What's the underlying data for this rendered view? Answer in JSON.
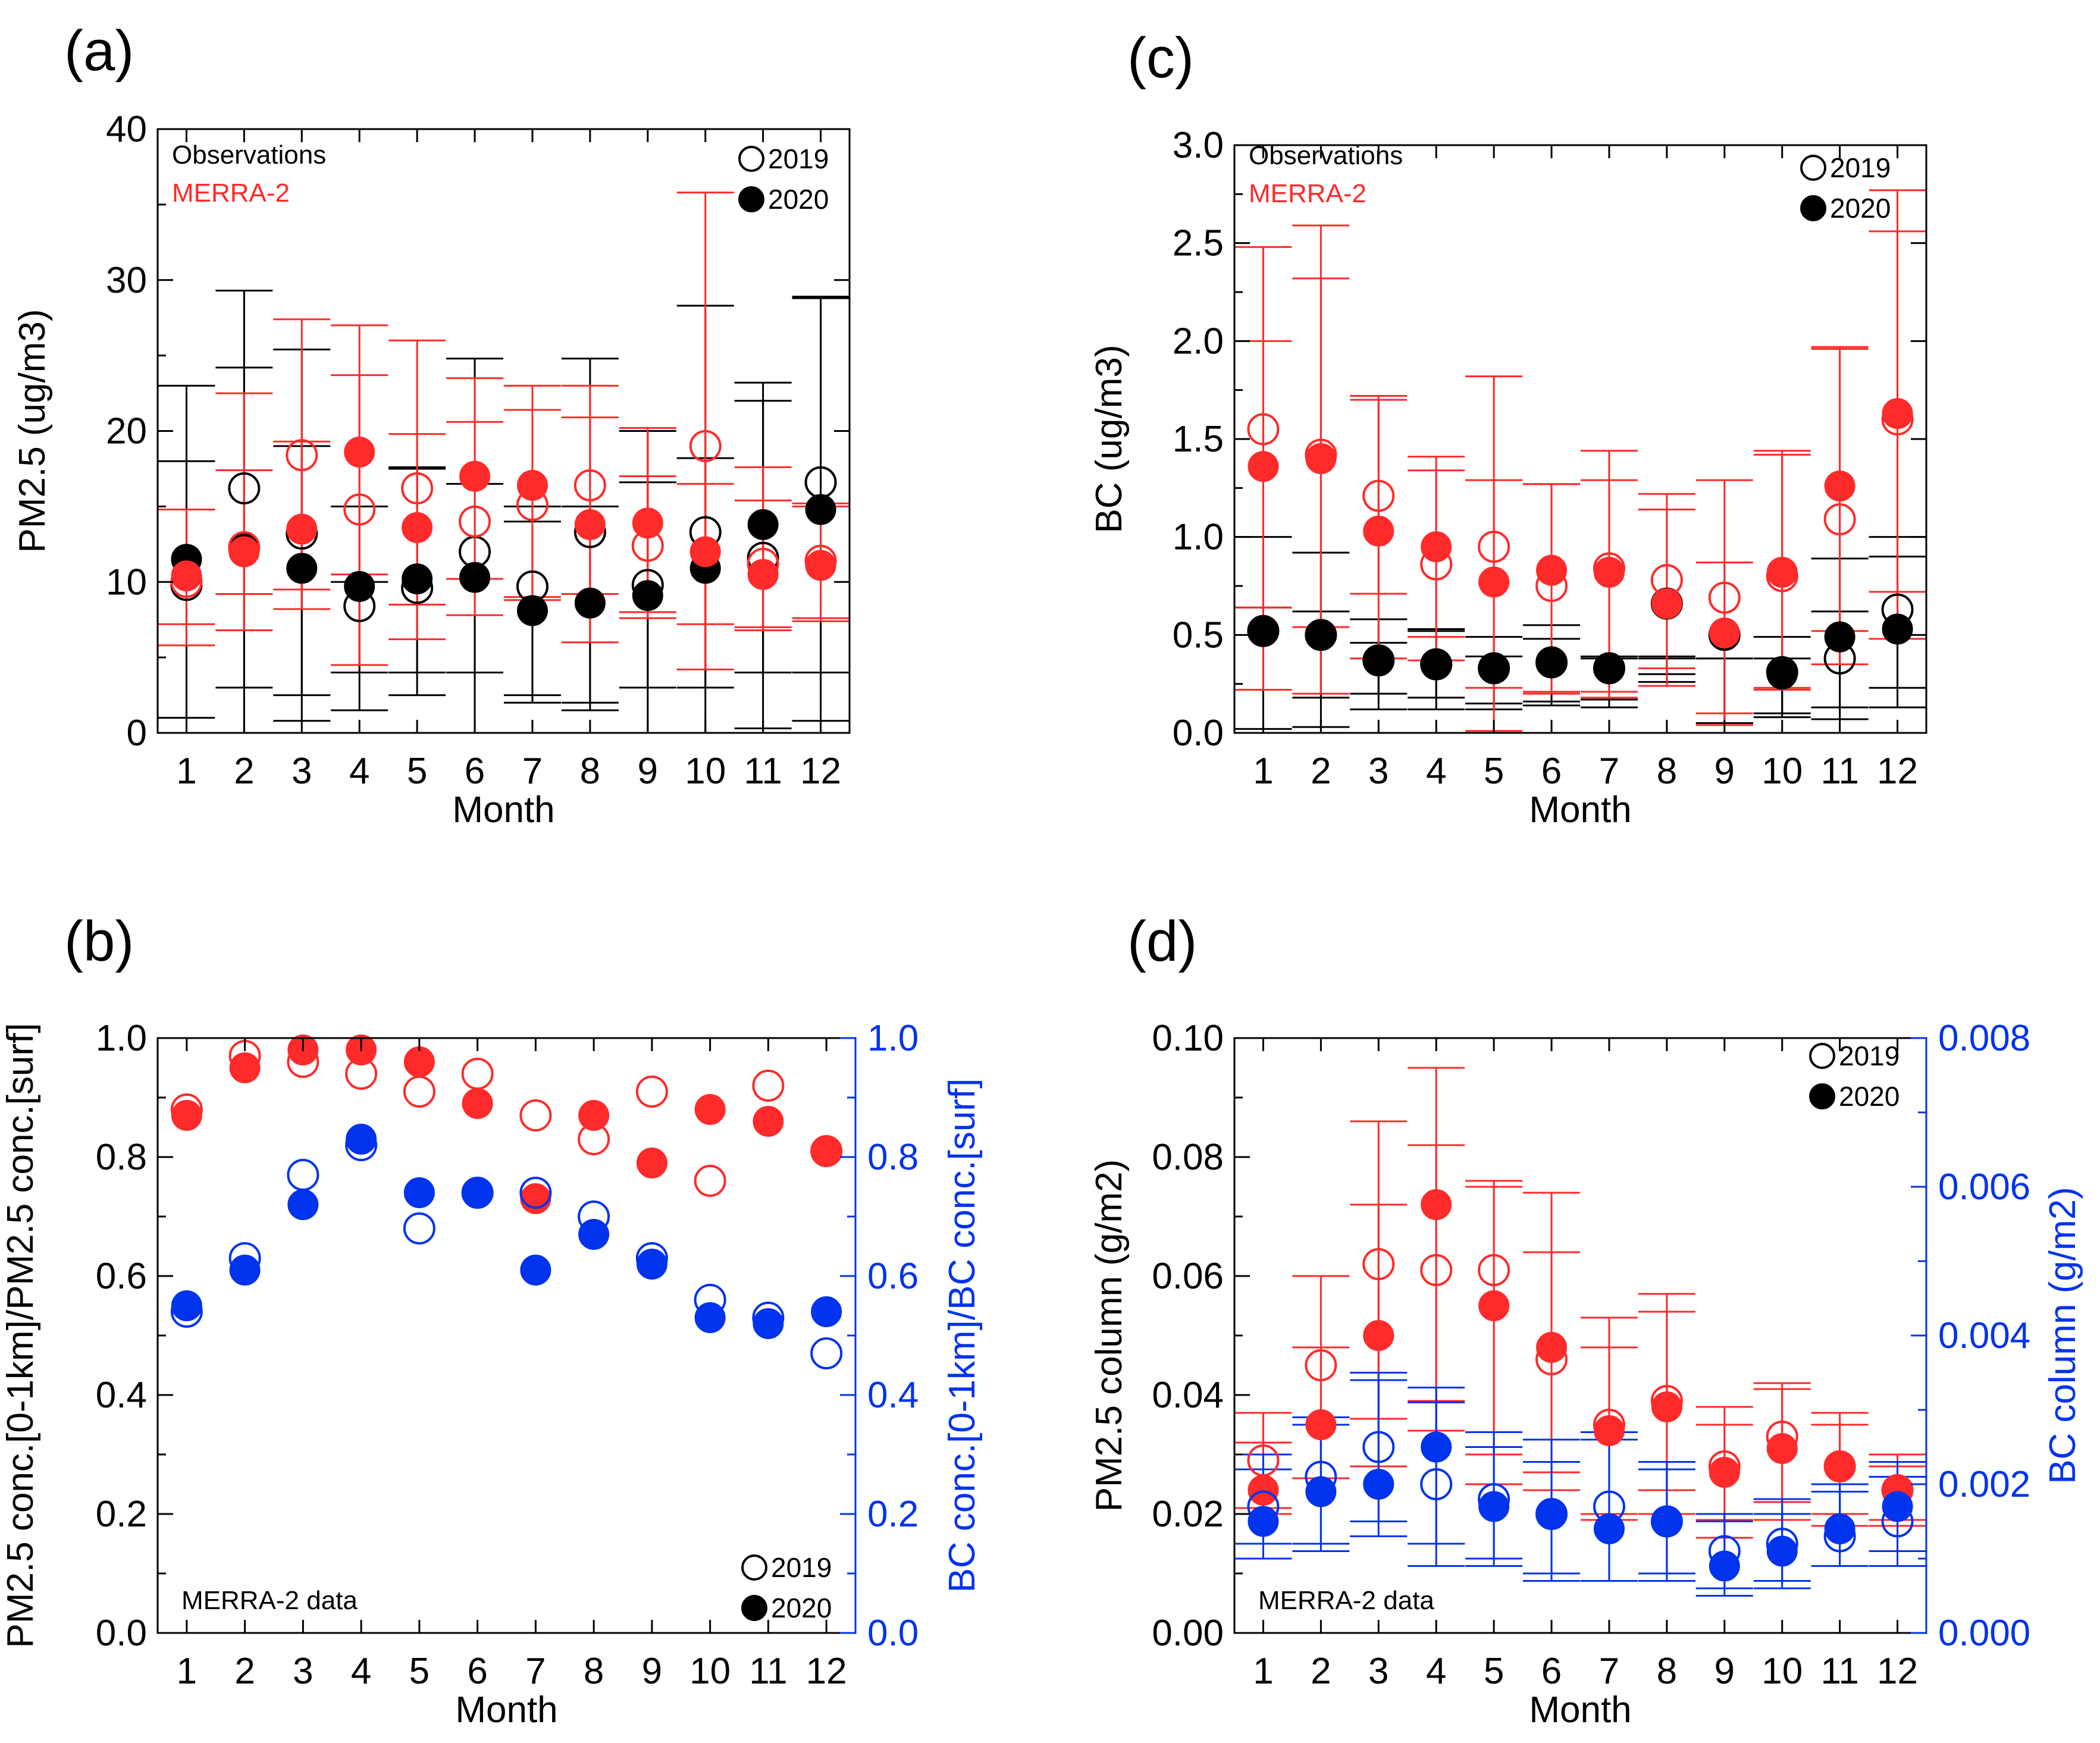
{
  "chart_data": [
    {
      "id": "a",
      "panel_label": "(a)",
      "type": "scatter",
      "xlabel": "Month",
      "ylabel": "PM2.5 (ug/m3)",
      "x": [
        1,
        2,
        3,
        4,
        5,
        6,
        7,
        8,
        9,
        10,
        11,
        12
      ],
      "x_ticks": [
        "1",
        "2",
        "3",
        "4",
        "5",
        "6",
        "7",
        "8",
        "9",
        "10",
        "11",
        "12"
      ],
      "xlim": [
        0.5,
        12.5
      ],
      "ylim": [
        0,
        40
      ],
      "y_ticks": [
        "0",
        "10",
        "20",
        "30",
        "40"
      ],
      "y_tick_values": [
        0,
        10,
        20,
        30,
        40
      ],
      "text_labels": [
        "Observations",
        "MERRA-2"
      ],
      "text_label_colors": [
        "#000000",
        "#ff2a2a"
      ],
      "legend": [
        "2019",
        "2020"
      ],
      "series": [
        {
          "name": "Observations 2019",
          "color": "#000000",
          "filled": false,
          "values": [
            9.8,
            16.2,
            13.2,
            8.4,
            9.6,
            12.0,
            9.7,
            13.3,
            9.8,
            13.3,
            11.6,
            16.6
          ],
          "upper": [
            18.0,
            24.2,
            25.4,
            15.0,
            17.5,
            24.8,
            15.0,
            15.0,
            16.6,
            28.3,
            22.0,
            28.8
          ],
          "lower": [
            1.0,
            3.0,
            2.5,
            4.0,
            4.0,
            4.0,
            2.0,
            2.0,
            3.0,
            3.0,
            4.0,
            4.0
          ]
        },
        {
          "name": "Observations 2020",
          "color": "#000000",
          "filled": true,
          "values": [
            11.5,
            12.3,
            10.9,
            9.7,
            10.2,
            10.3,
            8.1,
            8.6,
            9.1,
            10.9,
            13.8,
            14.8
          ],
          "upper": [
            23.0,
            29.3,
            19.0,
            10.0,
            17.6,
            16.5,
            14.0,
            24.8,
            20.0,
            18.2,
            23.2,
            28.9
          ],
          "lower": [
            0.0,
            0.0,
            0.8,
            1.5,
            2.5,
            0.0,
            2.5,
            1.5,
            0.0,
            0.0,
            0.3,
            0.8
          ]
        },
        {
          "name": "MERRA-2 2019",
          "color": "#ff2a2a",
          "filled": false,
          "values": [
            10.0,
            12.3,
            18.4,
            14.8,
            16.2,
            14.0,
            15.1,
            16.4,
            12.4,
            19.0,
            11.2,
            11.4
          ],
          "upper": [
            14.8,
            22.5,
            27.4,
            27.0,
            26.0,
            23.5,
            23.0,
            23.0,
            17.0,
            35.8,
            17.6,
            15.2
          ],
          "lower": [
            5.8,
            9.2,
            9.5,
            4.5,
            6.2,
            7.8,
            8.8,
            6.0,
            7.6,
            7.2,
            7.0,
            7.6
          ]
        },
        {
          "name": "MERRA-2 2020",
          "color": "#ff2a2a",
          "filled": true,
          "values": [
            10.4,
            12.0,
            13.5,
            18.6,
            13.6,
            17.0,
            16.4,
            13.8,
            13.9,
            12.0,
            10.5,
            11.1
          ],
          "upper": [
            14.8,
            17.4,
            19.3,
            23.7,
            19.8,
            20.6,
            21.4,
            20.9,
            20.2,
            16.5,
            15.4,
            15.0
          ],
          "lower": [
            7.2,
            6.8,
            8.2,
            10.5,
            8.5,
            10.2,
            9.0,
            9.2,
            8.0,
            4.2,
            6.8,
            7.4
          ]
        }
      ]
    },
    {
      "id": "c",
      "panel_label": "(c)",
      "type": "scatter",
      "xlabel": "Month",
      "ylabel": "BC (ug/m3)",
      "x": [
        1,
        2,
        3,
        4,
        5,
        6,
        7,
        8,
        9,
        10,
        11,
        12
      ],
      "x_ticks": [
        "1",
        "2",
        "3",
        "4",
        "5",
        "6",
        "7",
        "8",
        "9",
        "10",
        "11",
        "12"
      ],
      "xlim": [
        0.5,
        12.5
      ],
      "ylim": [
        0,
        3.0
      ],
      "y_ticks": [
        "0.0",
        "0.5",
        "1.0",
        "1.5",
        "2.0",
        "2.5",
        "3.0"
      ],
      "y_tick_values": [
        0,
        0.5,
        1.0,
        1.5,
        2.0,
        2.5,
        3.0
      ],
      "text_labels": [
        "Observations",
        "MERRA-2"
      ],
      "text_label_colors": [
        "#000000",
        "#ff2a2a"
      ],
      "legend": [
        "2019",
        "2020"
      ],
      "series": [
        {
          "name": "Observations 2019",
          "color": "#000000",
          "filled": false,
          "values": [
            0.52,
            0.5,
            0.37,
            0.35,
            0.33,
            0.36,
            0.33,
            0.66,
            0.5,
            0.31,
            0.38,
            0.63
          ],
          "upper": [
            1.0,
            0.92,
            0.58,
            0.52,
            0.49,
            0.55,
            0.39,
            0.38,
            0.38,
            0.49,
            0.89,
            1.0
          ],
          "lower": [
            0.02,
            0.03,
            0.12,
            0.12,
            0.12,
            0.14,
            0.13,
            0.26,
            0.05,
            0.1,
            0.07,
            0.23
          ]
        },
        {
          "name": "Observations 2020",
          "color": "#000000",
          "filled": true,
          "values": [
            0.52,
            0.5,
            0.37,
            0.35,
            0.33,
            0.36,
            0.33,
            0.66,
            0.5,
            0.3,
            0.49,
            0.53
          ],
          "upper": [
            0.64,
            0.62,
            0.46,
            0.53,
            0.39,
            0.48,
            0.38,
            0.39,
            0.38,
            0.38,
            0.62,
            0.9
          ],
          "lower": [
            0.22,
            0.18,
            0.2,
            0.18,
            0.15,
            0.16,
            0.17,
            0.3,
            0.05,
            0.08,
            0.13,
            0.13
          ]
        },
        {
          "name": "MERRA-2 2019",
          "color": "#ff2a2a",
          "filled": false,
          "values": [
            1.55,
            1.42,
            1.21,
            0.86,
            0.95,
            0.75,
            0.84,
            0.78,
            0.69,
            0.8,
            1.09,
            1.6
          ],
          "upper": [
            2.48,
            2.59,
            1.72,
            1.41,
            1.82,
            1.27,
            1.44,
            1.22,
            1.29,
            1.44,
            1.97,
            2.77
          ],
          "lower": [
            0.22,
            0.2,
            0.38,
            0.37,
            0.01,
            0.2,
            0.18,
            0.33,
            0.1,
            0.22,
            0.35,
            0.48
          ]
        },
        {
          "name": "MERRA-2 2020",
          "color": "#ff2a2a",
          "filled": true,
          "values": [
            1.36,
            1.4,
            1.03,
            0.95,
            0.77,
            0.83,
            0.82,
            0.66,
            0.51,
            0.82,
            1.26,
            1.63
          ],
          "upper": [
            2.0,
            2.32,
            1.7,
            1.34,
            1.29,
            1.27,
            1.29,
            1.14,
            0.87,
            1.42,
            1.96,
            2.56
          ],
          "lower": [
            0.64,
            0.54,
            0.71,
            0.49,
            0.23,
            0.21,
            0.21,
            0.24,
            0.04,
            0.23,
            0.52,
            0.72
          ]
        }
      ]
    },
    {
      "id": "b",
      "panel_label": "(b)",
      "type": "scatter",
      "xlabel": "Month",
      "ylabel": "PM2.5 conc.[0-1km]/PM2.5 conc.[surf]",
      "ylabel_right": "BC conc.[0-1km]/BC conc.[surf]",
      "x": [
        1,
        2,
        3,
        4,
        5,
        6,
        7,
        8,
        9,
        10,
        11,
        12
      ],
      "x_ticks": [
        "1",
        "2",
        "3",
        "4",
        "5",
        "6",
        "7",
        "8",
        "9",
        "10",
        "11",
        "12"
      ],
      "xlim": [
        0.5,
        12.5
      ],
      "ylim": [
        0,
        1.0
      ],
      "y_ticks": [
        "0.0",
        "0.2",
        "0.4",
        "0.6",
        "0.8",
        "1.0"
      ],
      "y_tick_values": [
        0,
        0.2,
        0.4,
        0.6,
        0.8,
        1.0
      ],
      "ylim_right": [
        0,
        1.0
      ],
      "y_ticks_right": [
        "0.0",
        "0.2",
        "0.4",
        "0.6",
        "0.8",
        "1.0"
      ],
      "y_tick_values_right": [
        0,
        0.2,
        0.4,
        0.6,
        0.8,
        1.0
      ],
      "text_labels": [
        "MERRA-2 data"
      ],
      "text_label_colors": [
        "#000000"
      ],
      "legend": [
        "2019",
        "2020"
      ],
      "series": [
        {
          "name": "PM2.5 2019",
          "color": "#ff2a2a",
          "filled": false,
          "values": [
            0.88,
            0.97,
            0.96,
            0.94,
            0.91,
            0.94,
            0.87,
            0.83,
            0.91,
            0.76,
            0.92,
            0.81
          ]
        },
        {
          "name": "PM2.5 2020",
          "color": "#ff2a2a",
          "filled": true,
          "values": [
            0.87,
            0.95,
            0.98,
            0.98,
            0.96,
            0.89,
            0.73,
            0.87,
            0.79,
            0.88,
            0.86,
            0.81
          ]
        },
        {
          "name": "BC 2019",
          "color": "#0033ee",
          "filled": false,
          "values": [
            0.54,
            0.63,
            0.77,
            0.82,
            0.68,
            0.74,
            0.74,
            0.7,
            0.63,
            0.56,
            0.53,
            0.47
          ]
        },
        {
          "name": "BC 2020",
          "color": "#0033ee",
          "filled": true,
          "values": [
            0.55,
            0.61,
            0.72,
            0.83,
            0.74,
            0.74,
            0.61,
            0.67,
            0.62,
            0.53,
            0.52,
            0.54
          ]
        }
      ]
    },
    {
      "id": "d",
      "panel_label": "(d)",
      "type": "scatter",
      "xlabel": "Month",
      "ylabel": "PM2.5 column (g/m2)",
      "ylabel_right": "BC column (g/m2)",
      "x": [
        1,
        2,
        3,
        4,
        5,
        6,
        7,
        8,
        9,
        10,
        11,
        12
      ],
      "x_ticks": [
        "1",
        "2",
        "3",
        "4",
        "5",
        "6",
        "7",
        "8",
        "9",
        "10",
        "11",
        "12"
      ],
      "xlim": [
        0.5,
        12.5
      ],
      "ylim": [
        0,
        0.1
      ],
      "y_ticks": [
        "0.00",
        "0.02",
        "0.04",
        "0.06",
        "0.08",
        "0.10"
      ],
      "y_tick_values": [
        0,
        0.02,
        0.04,
        0.06,
        0.08,
        0.1
      ],
      "ylim_right": [
        0,
        0.008
      ],
      "y_ticks_right": [
        "0.000",
        "0.002",
        "0.004",
        "0.006",
        "0.008"
      ],
      "y_tick_values_right": [
        0,
        0.002,
        0.004,
        0.006,
        0.008
      ],
      "text_labels": [
        "MERRA-2 data"
      ],
      "text_label_colors": [
        "#000000"
      ],
      "legend": [
        "2019",
        "2020"
      ],
      "series": [
        {
          "name": "PM2.5 2019",
          "color": "#ff2a2a",
          "filled": false,
          "axis": "left",
          "values": [
            0.029,
            0.045,
            0.062,
            0.061,
            0.061,
            0.046,
            0.035,
            0.039,
            0.028,
            0.033,
            0.028,
            0.024
          ],
          "upper": [
            0.037,
            0.06,
            0.086,
            0.095,
            0.076,
            0.074,
            0.053,
            0.057,
            0.038,
            0.042,
            0.037,
            0.03
          ],
          "lower": [
            0.021,
            0.026,
            0.036,
            0.034,
            0.025,
            0.024,
            0.02,
            0.024,
            0.019,
            0.022,
            0.02,
            0.018
          ]
        },
        {
          "name": "PM2.5 2020",
          "color": "#ff2a2a",
          "filled": true,
          "axis": "left",
          "values": [
            0.024,
            0.035,
            0.05,
            0.072,
            0.055,
            0.048,
            0.034,
            0.038,
            0.027,
            0.031,
            0.028,
            0.024
          ],
          "upper": [
            0.032,
            0.048,
            0.072,
            0.082,
            0.075,
            0.064,
            0.048,
            0.054,
            0.035,
            0.041,
            0.035,
            0.028
          ],
          "lower": [
            0.02,
            0.026,
            0.028,
            0.039,
            0.03,
            0.027,
            0.019,
            0.02,
            0.016,
            0.019,
            0.018,
            0.019
          ]
        },
        {
          "name": "BC 2019",
          "color": "#0033ee",
          "filled": false,
          "axis": "right",
          "values": [
            0.0017,
            0.0021,
            0.0025,
            0.002,
            0.0018,
            0.0016,
            0.0017,
            0.0015,
            0.0011,
            0.0012,
            0.0013,
            0.0015
          ],
          "upper": [
            0.0024,
            0.0029,
            0.0035,
            0.0031,
            0.0027,
            0.0026,
            0.0027,
            0.0023,
            0.0016,
            0.0016,
            0.002,
            0.0021
          ],
          "lower": [
            0.001,
            0.0012,
            0.0013,
            0.0012,
            0.001,
            0.0008,
            0.0007,
            0.0008,
            0.0006,
            0.0007,
            0.0009,
            0.0009
          ]
        },
        {
          "name": "BC 2020",
          "color": "#0033ee",
          "filled": true,
          "axis": "right",
          "values": [
            0.0015,
            0.0019,
            0.002,
            0.0025,
            0.0017,
            0.0016,
            0.0014,
            0.0015,
            0.0009,
            0.0011,
            0.0014,
            0.0017
          ],
          "upper": [
            0.0022,
            0.0028,
            0.0034,
            0.0033,
            0.0025,
            0.0023,
            0.0026,
            0.0022,
            0.0015,
            0.0018,
            0.0019,
            0.0023
          ],
          "lower": [
            0.0012,
            0.0011,
            0.0015,
            0.0009,
            0.0009,
            0.0007,
            0.0007,
            0.0007,
            0.0005,
            0.0006,
            0.0009,
            0.0011
          ]
        }
      ]
    }
  ]
}
